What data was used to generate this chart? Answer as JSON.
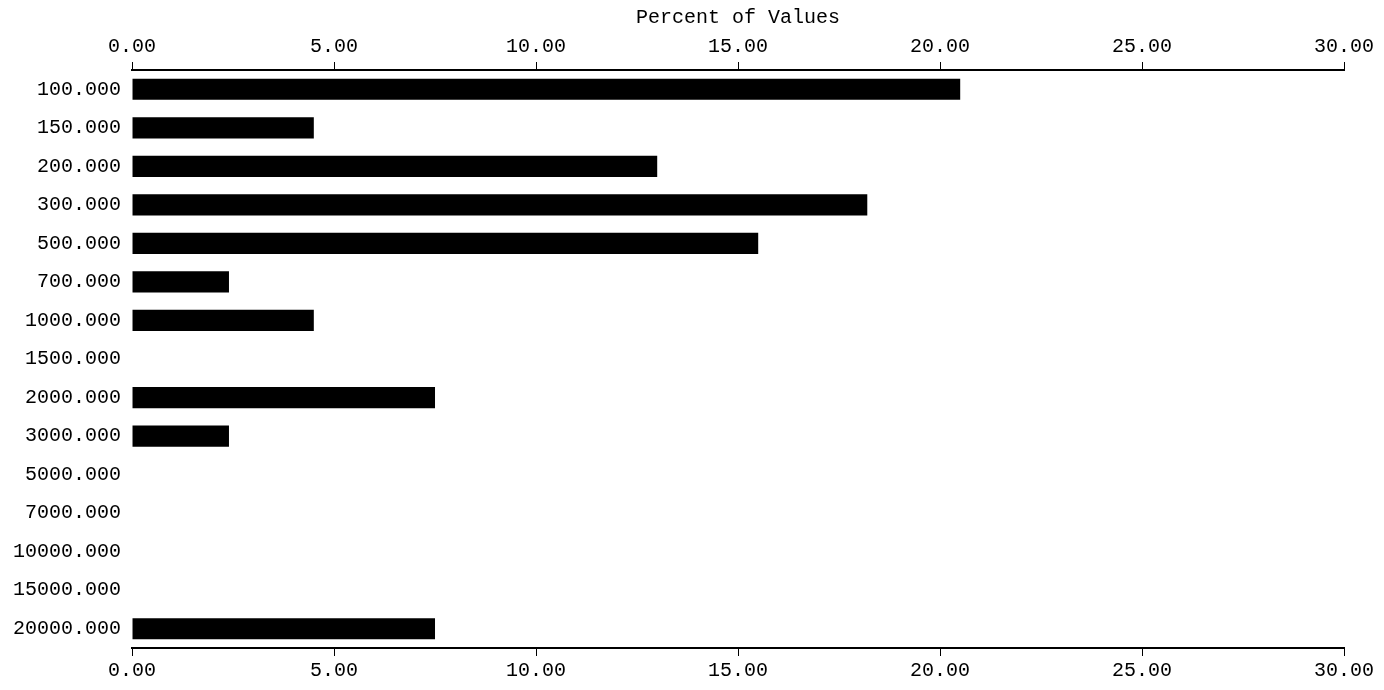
{
  "chart_data": {
    "type": "bar",
    "orientation": "horizontal",
    "x2label": "Percent of Values",
    "categories": [
      "100.000",
      "150.000",
      "200.000",
      "300.000",
      "500.000",
      "700.000",
      "1000.000",
      "1500.000",
      "2000.000",
      "3000.000",
      "5000.000",
      "7000.000",
      "10000.000",
      "15000.000",
      "20000.000"
    ],
    "values": [
      20.5,
      4.5,
      13,
      18.2,
      15.5,
      2.4,
      4.5,
      0,
      7.5,
      2.4,
      0,
      0,
      0,
      0,
      7.5
    ],
    "color": "#000000",
    "xlim": [
      0,
      30
    ],
    "xticks": [
      {
        "value": 0,
        "label": "0.00"
      },
      {
        "value": 5,
        "label": "5.00"
      },
      {
        "value": 10,
        "label": "10.00"
      },
      {
        "value": 15,
        "label": "15.00"
      },
      {
        "value": 20,
        "label": "20.00"
      },
      {
        "value": 25,
        "label": "25.00"
      },
      {
        "value": 30,
        "label": "30.00"
      }
    ],
    "x2lim": [
      0,
      30
    ],
    "x2ticks": [
      {
        "value": 0,
        "label": "0.00"
      },
      {
        "value": 5,
        "label": "5.00"
      },
      {
        "value": 10,
        "label": "10.00"
      },
      {
        "value": 15,
        "label": "15.00"
      },
      {
        "value": 20,
        "label": "20.00"
      },
      {
        "value": 25,
        "label": "25.00"
      },
      {
        "value": 30,
        "label": "30.00"
      }
    ]
  }
}
